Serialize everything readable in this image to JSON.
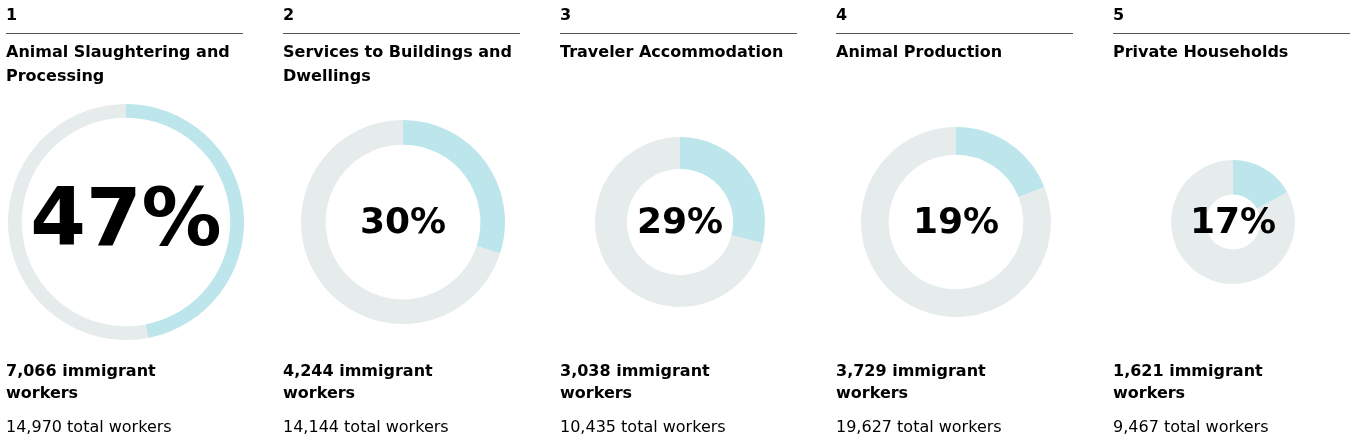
{
  "chart_data": [
    {
      "type": "donut",
      "title": "Animal Slaughtering and Processing",
      "categories": [
        null,
        null
      ],
      "values": [
        47,
        53
      ],
      "colors": [
        "#bde5ec",
        "#e6ecec"
      ],
      "value_labels": [
        "47%",
        null
      ],
      "annotations": [
        "1",
        "7,066 immigrant workers",
        "14,970 total workers"
      ]
    },
    {
      "type": "donut",
      "title": "Services to Buildings and Dwellings",
      "categories": [
        null,
        null
      ],
      "values": [
        30,
        70
      ],
      "colors": [
        "#bde5ec",
        "#e6ecec"
      ],
      "value_labels": [
        "30%",
        null
      ],
      "annotations": [
        "2",
        "4,244 immigrant workers",
        "14,144 total workers"
      ]
    },
    {
      "type": "donut",
      "title": "Traveler Accommodation",
      "categories": [
        null,
        null
      ],
      "values": [
        29,
        71
      ],
      "colors": [
        "#bde5ec",
        "#e6ecec"
      ],
      "value_labels": [
        "29%",
        null
      ],
      "annotations": [
        "3",
        "3,038 immigrant workers",
        "10,435 total workers"
      ]
    },
    {
      "type": "donut",
      "title": "Animal Production",
      "categories": [
        null,
        null
      ],
      "values": [
        19,
        81
      ],
      "colors": [
        "#bde5ec",
        "#e6ecec"
      ],
      "value_labels": [
        "19%",
        null
      ],
      "annotations": [
        "4",
        "3,729 immigrant workers",
        "19,627 total workers"
      ]
    },
    {
      "type": "donut",
      "title": "Private Households",
      "categories": [
        null,
        null
      ],
      "values": [
        17,
        83
      ],
      "colors": [
        "#bde5ec",
        "#e6ecec"
      ],
      "value_labels": [
        "17%",
        null
      ],
      "annotations": [
        "5",
        "1,621 immigrant workers",
        "9,467 total workers"
      ]
    }
  ]
}
